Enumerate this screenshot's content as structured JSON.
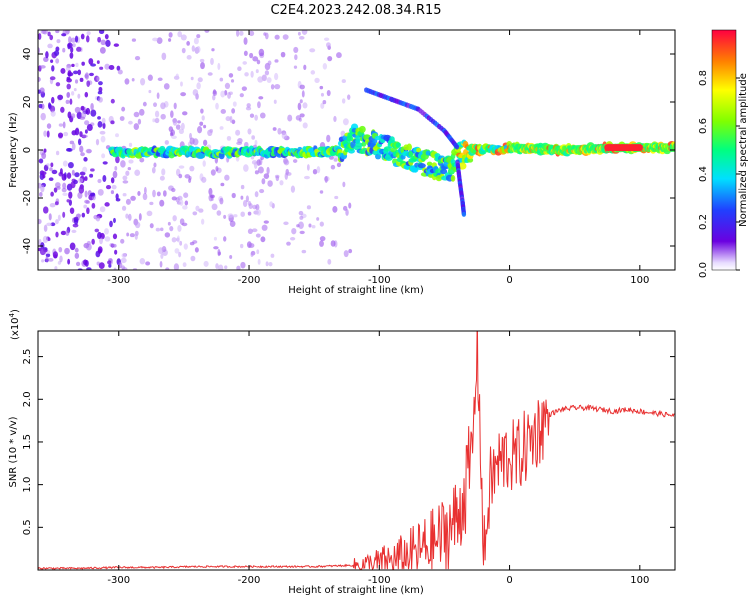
{
  "title": "C2E4.2023.242.08.34.R15",
  "colors": {
    "snr_line": "#e83030",
    "spectrum_low": "#5a00d0",
    "spectrum_high": "#ff0020"
  },
  "chart_data": [
    {
      "type": "heatmap",
      "xlabel": "Height of straight line (km)",
      "ylabel": "Frequency (Hz)",
      "xlim": [
        -362,
        127
      ],
      "ylim": [
        -50,
        50
      ],
      "xticks": [
        -300,
        -200,
        -100,
        0,
        100
      ],
      "xtick_labels": [
        "-300",
        "-200",
        "-100",
        "0",
        "100"
      ],
      "yticks": [
        -40,
        -20,
        0,
        20,
        40
      ],
      "ytick_labels": [
        "-40",
        "-20",
        "0",
        "20",
        "40"
      ],
      "colorbar": {
        "label": "Normalized spectral amplitude",
        "range": [
          0,
          1
        ],
        "ticks": [
          0.0,
          0.2,
          0.4,
          0.6,
          0.8
        ],
        "tick_labels": [
          "0.0",
          "0.2",
          "0.4",
          "0.6",
          "0.8"
        ],
        "colormap": "rainbow"
      },
      "features": {
        "main_trace": [
          [
            -300,
            -1
          ],
          [
            -250,
            -1
          ],
          [
            -200,
            -1
          ],
          [
            -150,
            -1
          ],
          [
            -130,
            0
          ],
          [
            -120,
            5
          ],
          [
            -100,
            2
          ],
          [
            -80,
            -3
          ],
          [
            -60,
            -6
          ],
          [
            -45,
            -9
          ],
          [
            -40,
            -3
          ],
          [
            -30,
            0
          ],
          [
            -10,
            0
          ],
          [
            0,
            1
          ],
          [
            40,
            0
          ],
          [
            90,
            1
          ],
          [
            127,
            1
          ]
        ],
        "upper_branch": [
          [
            -110,
            25
          ],
          [
            -90,
            21
          ],
          [
            -70,
            17
          ],
          [
            -50,
            8
          ],
          [
            -40,
            1
          ]
        ],
        "lower_branch": [
          [
            -40,
            -5
          ],
          [
            -38,
            -14
          ],
          [
            -36,
            -22
          ],
          [
            -35,
            -27
          ]
        ]
      }
    },
    {
      "type": "line",
      "xlabel": "Height of straight line (km)",
      "ylabel": "SNR (10 * v/v)",
      "y_multiplier": "(x10",
      "y_multiplier_exp": "4",
      "y_multiplier_close": ")",
      "xlim": [
        -362,
        127
      ],
      "ylim": [
        0,
        2.8
      ],
      "xticks": [
        -300,
        -200,
        -100,
        0,
        100
      ],
      "xtick_labels": [
        "-300",
        "-200",
        "-100",
        "0",
        "100"
      ],
      "yticks": [
        0.5,
        1.0,
        1.5,
        2.0,
        2.5
      ],
      "ytick_labels": [
        "0.5",
        "1.0",
        "1.5",
        "2.0",
        "2.5"
      ],
      "series": [
        {
          "x": [
            -362,
            -330,
            -300,
            -270,
            -240,
            -210,
            -180,
            -150,
            -130,
            -110,
            -100,
            -90,
            -80,
            -70,
            -60,
            -50,
            -40,
            -35,
            -30,
            -27,
            -25,
            -22,
            -20,
            -15,
            -10,
            -5,
            0,
            5,
            10,
            20,
            30,
            40,
            50,
            60,
            70,
            80,
            90,
            100,
            110,
            120,
            127
          ],
          "y": [
            0.02,
            0.02,
            0.03,
            0.03,
            0.04,
            0.04,
            0.04,
            0.04,
            0.05,
            0.06,
            0.08,
            0.1,
            0.15,
            0.22,
            0.3,
            0.42,
            0.6,
            0.9,
            1.2,
            1.8,
            2.7,
            1.4,
            0.1,
            1.0,
            1.2,
            1.3,
            1.35,
            1.3,
            1.4,
            1.6,
            1.82,
            1.88,
            1.9,
            1.9,
            1.88,
            1.86,
            1.88,
            1.86,
            1.84,
            1.82,
            1.81
          ]
        }
      ]
    }
  ]
}
